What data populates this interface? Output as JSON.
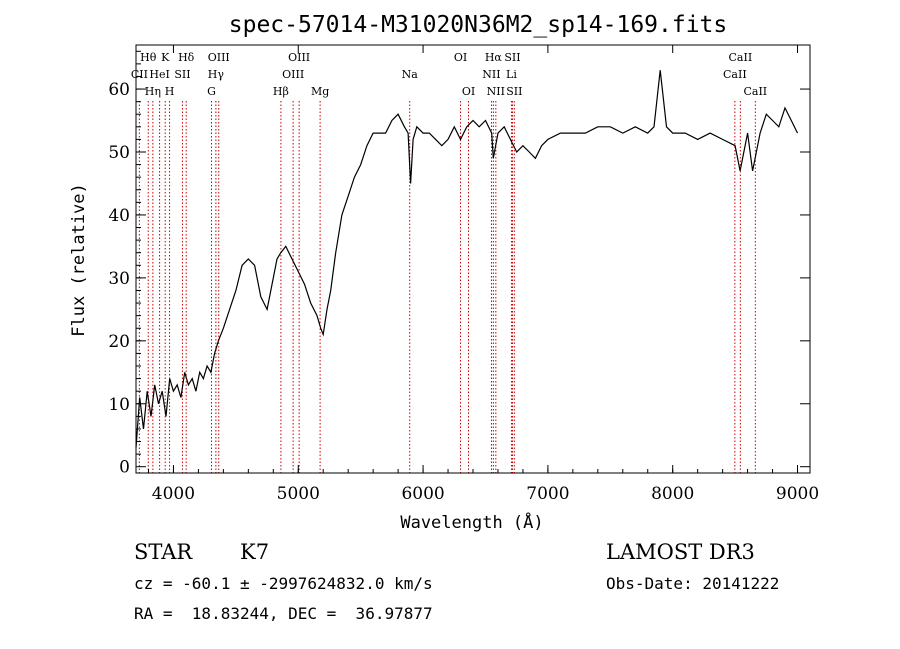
{
  "chart_data": {
    "type": "line",
    "title": "spec-57014-M31020N36M2_sp14-169.fits",
    "xlabel": "Wavelength (Å)",
    "ylabel": "Flux (relative)",
    "xlim": [
      3700,
      9100
    ],
    "ylim": [
      -1,
      67
    ],
    "xticks": [
      4000,
      5000,
      6000,
      7000,
      8000,
      9000
    ],
    "yticks": [
      0,
      10,
      20,
      30,
      40,
      50,
      60
    ],
    "grid": false,
    "series": [
      {
        "x": [
          3700,
          3730,
          3760,
          3790,
          3820,
          3850,
          3880,
          3910,
          3940,
          3970,
          4000,
          4030,
          4060,
          4090,
          4120,
          4150,
          4180,
          4210,
          4240,
          4270,
          4300,
          4330,
          4360,
          4400,
          4450,
          4500,
          4550,
          4600,
          4650,
          4700,
          4750,
          4800,
          4830,
          4860,
          4900,
          4950,
          5000,
          5050,
          5100,
          5150,
          5180,
          5200,
          5230,
          5260,
          5300,
          5350,
          5400,
          5450,
          5500,
          5550,
          5600,
          5650,
          5700,
          5750,
          5800,
          5850,
          5880,
          5900,
          5920,
          5950,
          6000,
          6050,
          6100,
          6150,
          6200,
          6250,
          6300,
          6350,
          6400,
          6450,
          6500,
          6550,
          6563,
          6600,
          6650,
          6700,
          6750,
          6800,
          6850,
          6900,
          6950,
          7000,
          7100,
          7200,
          7300,
          7400,
          7500,
          7600,
          7700,
          7800,
          7850,
          7900,
          7950,
          8000,
          8100,
          8200,
          8300,
          8400,
          8500,
          8540,
          8600,
          8640,
          8700,
          8750,
          8800,
          8850,
          8900,
          8950,
          9000
        ],
        "y": [
          3,
          11,
          6,
          12,
          8,
          13,
          10,
          12,
          8,
          14,
          12,
          13,
          11,
          15,
          13,
          14,
          12,
          15,
          14,
          16,
          15,
          18,
          20,
          22,
          25,
          28,
          32,
          33,
          32,
          27,
          25,
          30,
          33,
          34,
          35,
          33,
          31,
          29,
          26,
          24,
          22,
          21,
          25,
          28,
          34,
          40,
          43,
          46,
          48,
          51,
          53,
          53,
          53,
          55,
          56,
          54,
          53,
          45,
          52,
          54,
          53,
          53,
          52,
          51,
          52,
          54,
          52,
          54,
          55,
          54,
          55,
          53,
          49,
          53,
          54,
          52,
          50,
          51,
          50,
          49,
          51,
          52,
          53,
          53,
          53,
          54,
          54,
          53,
          54,
          53,
          54,
          63,
          54,
          53,
          53,
          52,
          53,
          52,
          51,
          47,
          53,
          47,
          53,
          56,
          55,
          54,
          57,
          55,
          53
        ]
      }
    ],
    "line_markers": [
      {
        "label": "Hθ",
        "wave": 3798,
        "row": 1
      },
      {
        "label": "CII",
        "wave": 3727,
        "row": 2
      },
      {
        "label": "Hη",
        "wave": 3835,
        "row": 3
      },
      {
        "label": "K",
        "wave": 3934,
        "row": 1
      },
      {
        "label": "HeI",
        "wave": 3889,
        "row": 2
      },
      {
        "label": "H",
        "wave": 3969,
        "row": 3
      },
      {
        "label": "Hδ",
        "wave": 4102,
        "row": 1
      },
      {
        "label": "SII",
        "wave": 4072,
        "row": 2
      },
      {
        "label": "OIII",
        "wave": 4363,
        "row": 1
      },
      {
        "label": "Hγ",
        "wave": 4340,
        "row": 2
      },
      {
        "label": "G",
        "wave": 4305,
        "row": 3
      },
      {
        "label": "Hβ",
        "wave": 4861,
        "row": 3
      },
      {
        "label": "OIII",
        "wave": 5007,
        "row": 1
      },
      {
        "label": "OIII",
        "wave": 4959,
        "row": 2
      },
      {
        "label": "Mg",
        "wave": 5175,
        "row": 3
      },
      {
        "label": "Na",
        "wave": 5893,
        "row": 2
      },
      {
        "label": "OI",
        "wave": 6300,
        "row": 1
      },
      {
        "label": "OI",
        "wave": 6364,
        "row": 3
      },
      {
        "label": "Hα",
        "wave": 6563,
        "row": 1
      },
      {
        "label": "NII",
        "wave": 6548,
        "row": 2
      },
      {
        "label": "NII",
        "wave": 6583,
        "row": 3
      },
      {
        "label": "SII",
        "wave": 6716,
        "row": 1
      },
      {
        "label": "Li",
        "wave": 6708,
        "row": 2
      },
      {
        "label": "SII",
        "wave": 6731,
        "row": 3
      },
      {
        "label": "CaII",
        "wave": 8542,
        "row": 1
      },
      {
        "label": "CaII",
        "wave": 8498,
        "row": 2
      },
      {
        "label": "CaII",
        "wave": 8662,
        "row": 3
      }
    ],
    "line_marker_color": "#cc0000"
  },
  "info": {
    "class_label": "STAR",
    "subclass": "K7",
    "survey": "LAMOST DR3",
    "cz_line": "cz = -60.1 ± -2997624832.0 km/s",
    "obs_date": "Obs-Date: 20141222",
    "coords": "RA =  18.83244, DEC =  36.97877"
  }
}
